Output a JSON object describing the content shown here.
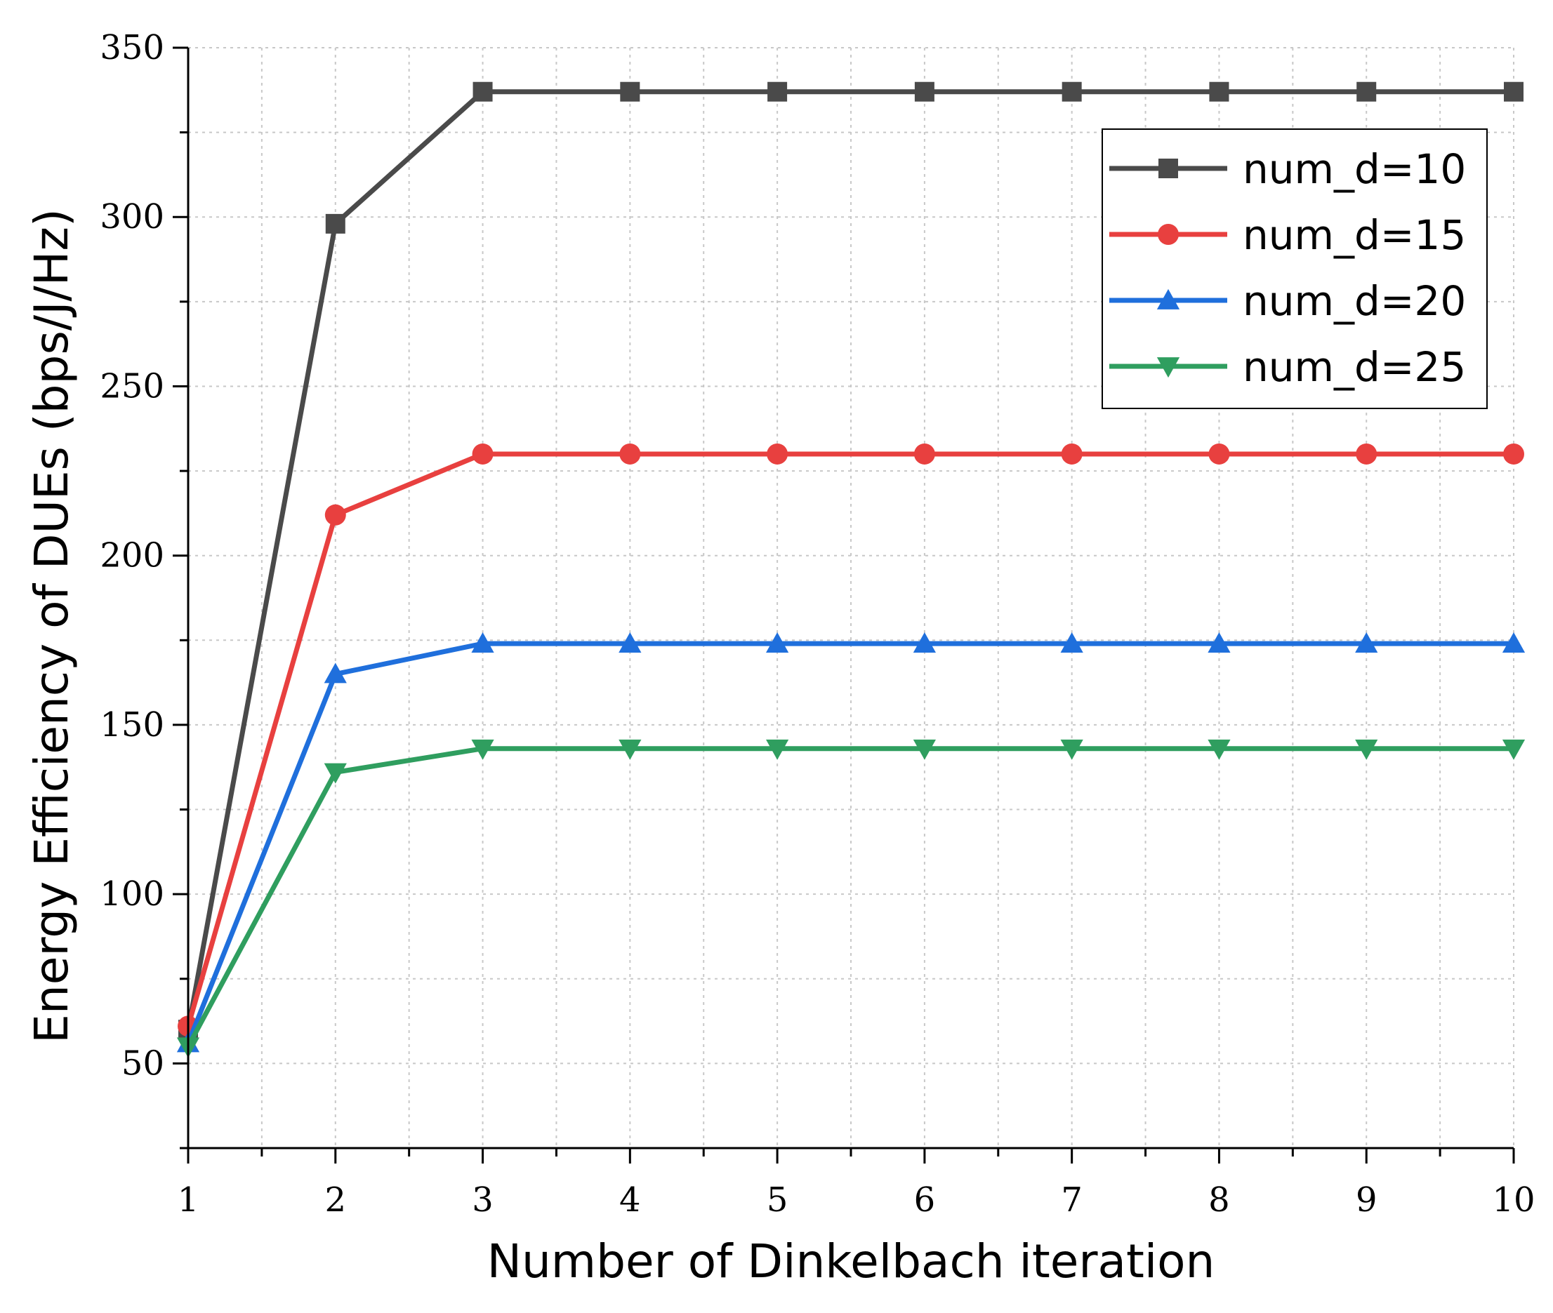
{
  "chart_data": {
    "type": "line",
    "xlabel": "Number of Dinkelbach iteration",
    "ylabel": "Energy Efficiency of DUEs (bps/J/Hz)",
    "x": [
      1,
      2,
      3,
      4,
      5,
      6,
      7,
      8,
      9,
      10
    ],
    "xlim": [
      1,
      10
    ],
    "ylim": [
      25,
      350
    ],
    "xticks": [
      1,
      2,
      3,
      4,
      5,
      6,
      7,
      8,
      9,
      10
    ],
    "yticks": [
      50,
      100,
      150,
      200,
      250,
      300,
      350
    ],
    "grid": true,
    "legend_position": "top-right",
    "series": [
      {
        "name": "num_d=10",
        "color": "#4a4a4a",
        "marker": "square",
        "values": [
          60,
          298,
          337,
          337,
          337,
          337,
          337,
          337,
          337,
          337
        ]
      },
      {
        "name": "num_d=15",
        "color": "#e8403f",
        "marker": "circle",
        "values": [
          61,
          212,
          230,
          230,
          230,
          230,
          230,
          230,
          230,
          230
        ]
      },
      {
        "name": "num_d=20",
        "color": "#1f6fdc",
        "marker": "triangle-up",
        "values": [
          56,
          165,
          174,
          174,
          174,
          174,
          174,
          174,
          174,
          174
        ]
      },
      {
        "name": "num_d=25",
        "color": "#2f9e5f",
        "marker": "triangle-down",
        "values": [
          55,
          136,
          143,
          143,
          143,
          143,
          143,
          143,
          143,
          143
        ]
      }
    ]
  }
}
